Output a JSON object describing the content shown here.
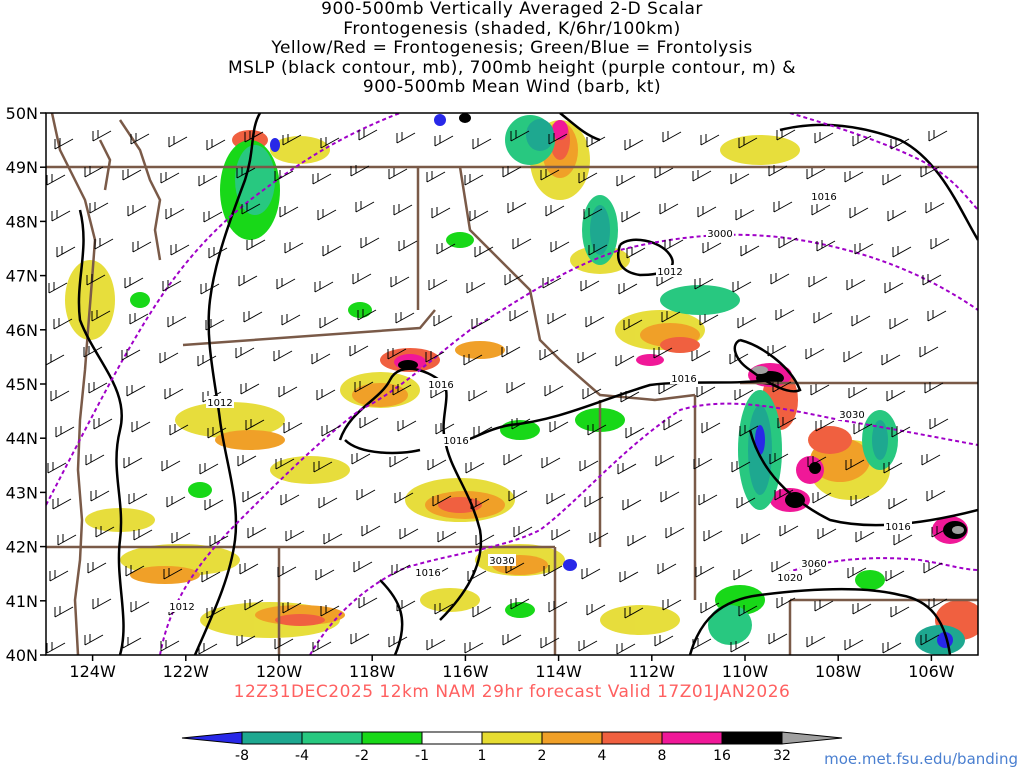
{
  "title": {
    "lines": [
      "900-500mb Vertically Averaged 2-D Scalar",
      "Frontogenesis (shaded, K/6hr/100km)",
      "Yellow/Red = Frontogenesis;  Green/Blue = Frontolysis",
      "MSLP (black contour, mb), 700mb height (purple contour, m) &",
      "900-500mb Mean Wind (barb, kt)"
    ]
  },
  "map": {
    "lat_labels": [
      "50N",
      "49N",
      "48N",
      "47N",
      "46N",
      "45N",
      "44N",
      "43N",
      "42N",
      "41N",
      "40N"
    ],
    "lon_labels": [
      "124W",
      "122W",
      "120W",
      "118W",
      "116W",
      "114W",
      "112W",
      "110W",
      "108W",
      "106W"
    ],
    "lat_range": [
      40,
      50
    ],
    "lon_range": [
      -125,
      -105
    ],
    "mslp_contour_labels": [
      "1016",
      "1012",
      "1012",
      "1016",
      "1016",
      "1016",
      "1016",
      "1016",
      "1012",
      "1020"
    ],
    "height_contour_labels": [
      "3000",
      "3030",
      "3030",
      "3060"
    ],
    "colors": {
      "border": "#7a5a48",
      "mslp": "#000000",
      "height": "#a000c8"
    }
  },
  "colorbar": {
    "labels": [
      "-8",
      "-4",
      "-2",
      "-1",
      "1",
      "2",
      "4",
      "8",
      "16",
      "32"
    ],
    "colors": [
      "#2828e8",
      "#1ea890",
      "#28c880",
      "#18d818",
      "#ffffff",
      "#e6dc32",
      "#f0a028",
      "#f06040",
      "#f01898",
      "#000000",
      "#a0a0a0"
    ]
  },
  "footer": "12Z31DEC2025 12km NAM 29hr forecast Valid 17Z01JAN2026",
  "credit": "moe.met.fsu.edu/banding"
}
